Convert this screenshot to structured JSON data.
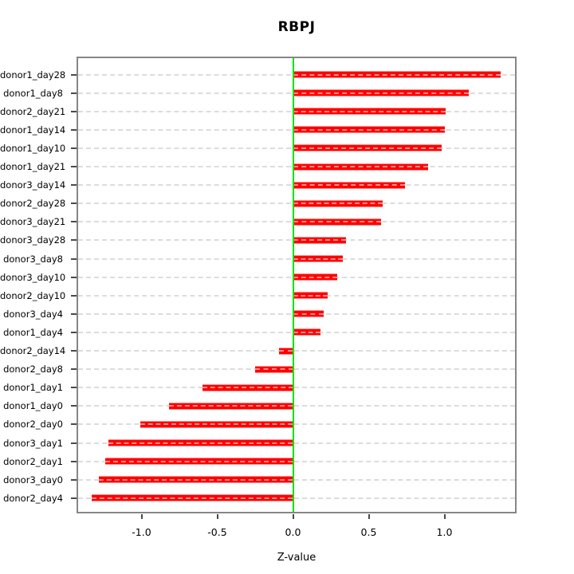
{
  "chart_data": {
    "type": "bar",
    "orientation": "horizontal",
    "title": "RBPJ",
    "xlabel": "Z-value",
    "ylabel": "",
    "categories": [
      "donor1_day28",
      "donor1_day8",
      "donor2_day21",
      "donor1_day14",
      "donor1_day10",
      "donor1_day21",
      "donor3_day14",
      "donor2_day28",
      "donor3_day21",
      "donor3_day28",
      "donor3_day8",
      "donor3_day10",
      "donor2_day10",
      "donor3_day4",
      "donor1_day4",
      "donor2_day14",
      "donor2_day8",
      "donor1_day1",
      "donor1_day0",
      "donor2_day0",
      "donor3_day1",
      "donor2_day1",
      "donor3_day0",
      "donor2_day4"
    ],
    "values": [
      1.37,
      1.16,
      1.01,
      1.0,
      0.98,
      0.89,
      0.74,
      0.59,
      0.58,
      0.35,
      0.33,
      0.29,
      0.23,
      0.2,
      0.18,
      -0.09,
      -0.25,
      -0.6,
      -0.82,
      -1.01,
      -1.22,
      -1.24,
      -1.28,
      -1.33
    ],
    "xticks": [
      -1.0,
      -0.5,
      0.0,
      0.5,
      1.0
    ],
    "xtick_labels": [
      "-1.0",
      "-0.5",
      "0.0",
      "0.5",
      "1.0"
    ],
    "xlim": [
      -1.44,
      1.48
    ],
    "zero_line": 0,
    "grid": true,
    "grid_style": "dashed",
    "legend": false
  },
  "colors": {
    "bar": "#FF0000",
    "bar_edge": "#FF8A8A",
    "zero_line": "#00E300",
    "grid_line": "#DCDCDC",
    "box_border": "#868686",
    "tick": "#4A4A4A",
    "text": "#000000",
    "background": "#FFFFFF"
  }
}
